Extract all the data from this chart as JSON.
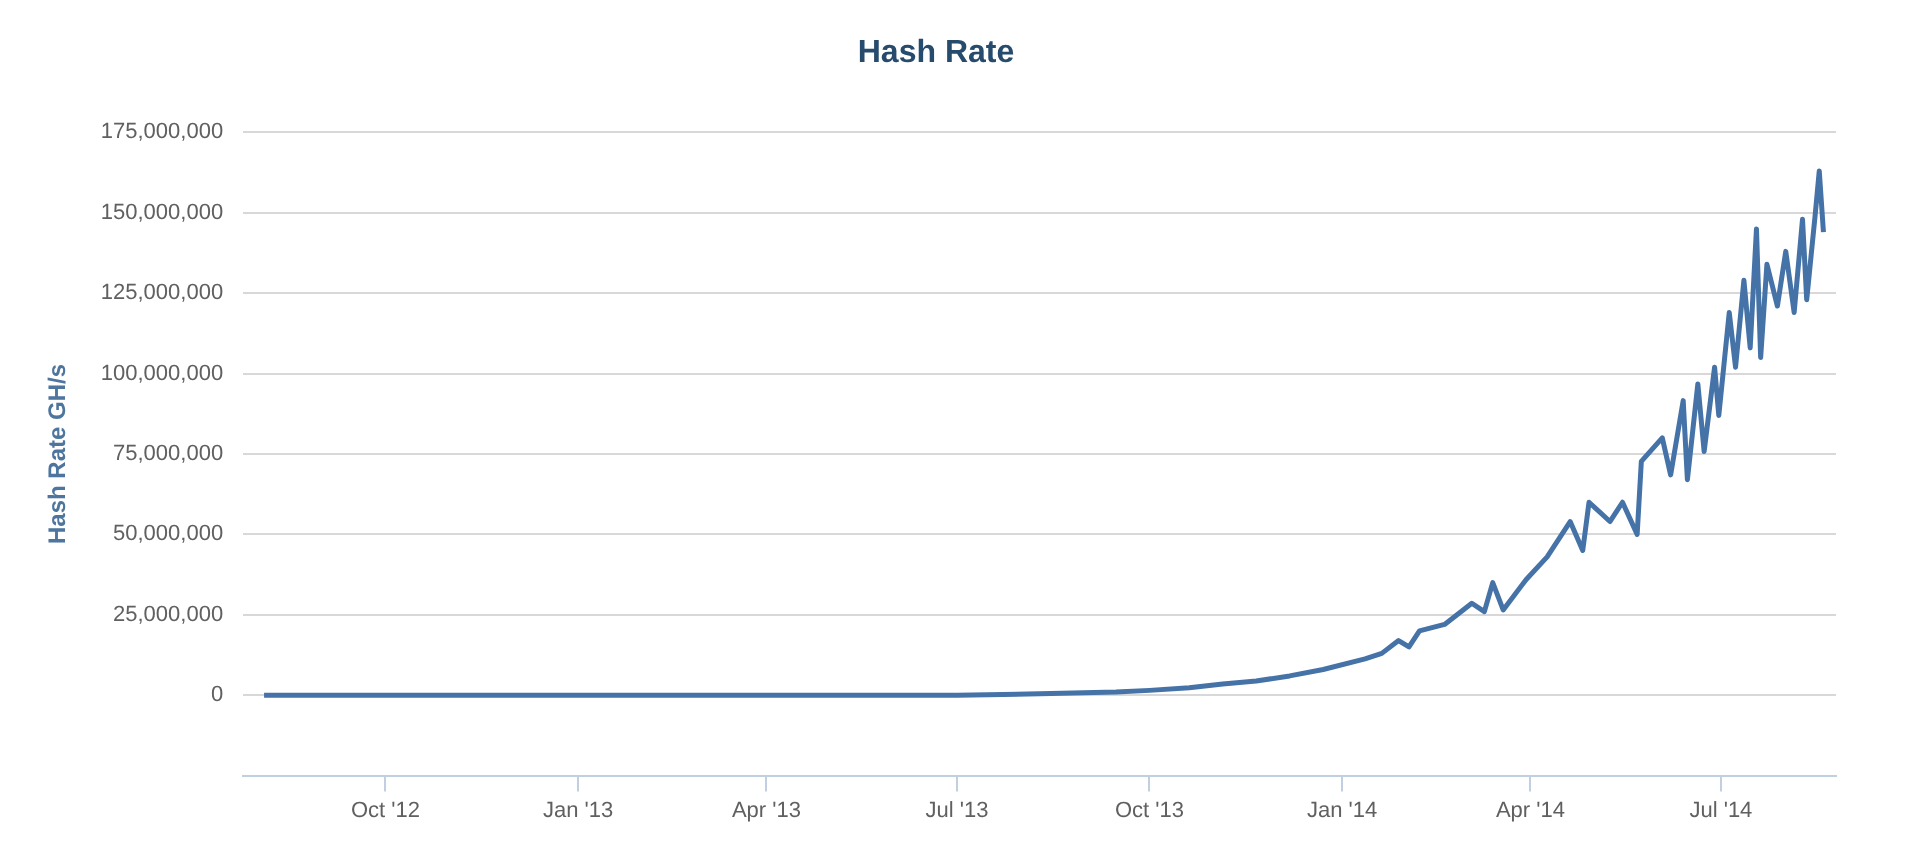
{
  "chart_data": {
    "type": "line",
    "title": "Hash Rate",
    "ylabel": "Hash Rate GH/s",
    "x": [
      "2012-08-04",
      "2012-10-01",
      "2013-01-01",
      "2013-04-01",
      "2013-07-01",
      "2013-08-15",
      "2013-09-15",
      "2013-10-01",
      "2013-10-20",
      "2013-11-05",
      "2013-11-21",
      "2013-12-07",
      "2013-12-23",
      "2014-01-12",
      "2014-01-20",
      "2014-01-28",
      "2014-02-02",
      "2014-02-07",
      "2014-02-19",
      "2014-03-04",
      "2014-03-10",
      "2014-03-14",
      "2014-03-19",
      "2014-03-30",
      "2014-04-09",
      "2014-04-20",
      "2014-04-26",
      "2014-04-29",
      "2014-05-09",
      "2014-05-15",
      "2014-05-22",
      "2014-05-24",
      "2014-06-03",
      "2014-06-07",
      "2014-06-13",
      "2014-06-15",
      "2014-06-20",
      "2014-06-23",
      "2014-06-28",
      "2014-06-30",
      "2014-07-05",
      "2014-07-08",
      "2014-07-12",
      "2014-07-15",
      "2014-07-18",
      "2014-07-20",
      "2014-07-23",
      "2014-07-28",
      "2014-08-01",
      "2014-08-05",
      "2014-08-09",
      "2014-08-11",
      "2014-08-15",
      "2014-08-17",
      "2014-08-19"
    ],
    "series": [
      {
        "color": "#4572a7",
        "values": [
          0,
          0,
          0,
          0,
          0,
          500000,
          1000000,
          1500000,
          2300000,
          3500000,
          4400000,
          6000000,
          8000000,
          11300000,
          13000000,
          17000000,
          15000000,
          20000000,
          22000000,
          28600000,
          26000000,
          35000000,
          26500000,
          36000000,
          43000000,
          54000000,
          45000000,
          60000000,
          54000000,
          60000000,
          50000000,
          72700000,
          80000000,
          68500000,
          91600000,
          67000000,
          96800000,
          75800000,
          102000000,
          87000000,
          119000000,
          102000000,
          129000000,
          108000000,
          145000000,
          105000000,
          134000000,
          121000000,
          138000000,
          119000000,
          148000000,
          123000000,
          149000000,
          163000000,
          144000000
        ]
      }
    ],
    "xlim": [
      "2012-07-25",
      "2014-08-25"
    ],
    "xticks": [
      {
        "value": "2012-10-01",
        "label": "Oct '12"
      },
      {
        "value": "2013-01-01",
        "label": "Jan '13"
      },
      {
        "value": "2013-04-01",
        "label": "Apr '13"
      },
      {
        "value": "2013-07-01",
        "label": "Jul '13"
      },
      {
        "value": "2013-10-01",
        "label": "Oct '13"
      },
      {
        "value": "2014-01-01",
        "label": "Jan '14"
      },
      {
        "value": "2014-04-01",
        "label": "Apr '14"
      },
      {
        "value": "2014-07-01",
        "label": "Jul '14"
      }
    ],
    "ylim": [
      -25000000,
      175000000
    ],
    "yticks": [
      0,
      {
        "value": 25000000,
        "label": "25,000,000"
      },
      {
        "value": 50000000,
        "label": "50,000,000"
      },
      {
        "value": 75000000,
        "label": "75,000,000"
      },
      {
        "value": 100000000,
        "label": "100,000,000"
      },
      {
        "value": 125000000,
        "label": "125,000,000"
      },
      {
        "value": 150000000,
        "label": "150,000,000"
      },
      {
        "value": 175000000,
        "label": "175,000,000"
      }
    ],
    "grid": "y",
    "legend": false,
    "marker": "none",
    "line_style": "solid"
  }
}
